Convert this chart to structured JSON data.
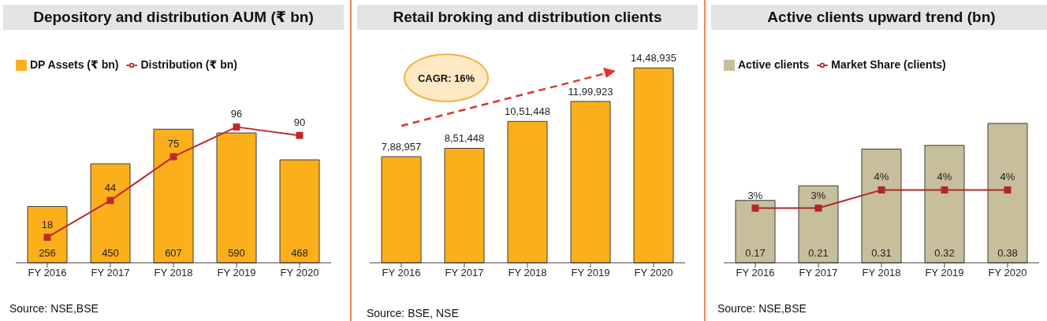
{
  "chart_data": [
    {
      "type": "bar",
      "title": "Depository and distribution AUM (₹ bn)",
      "categories": [
        "FY 2016",
        "FY 2017",
        "FY 2018",
        "FY 2019",
        "FY 2020"
      ],
      "series": [
        {
          "name": "DP Assets (₹ bn)",
          "color": "#fbb01b",
          "values": [
            256,
            450,
            607,
            590,
            468
          ]
        },
        {
          "name": "Distribution (₹ bn)",
          "type": "line",
          "axis": "y2",
          "color": "#c0282d",
          "values": [
            18,
            44,
            75,
            96,
            90
          ]
        }
      ],
      "data_labels": true,
      "marker": "square",
      "legend": "top left",
      "annotations": [
        "Source: NSE,BSE"
      ]
    },
    {
      "type": "bar",
      "title": "Retail broking and distribution clients",
      "categories": [
        "FY 2016",
        "FY 2017",
        "FY 2018",
        "FY 2019",
        "FY 2020"
      ],
      "values": [
        788957,
        851448,
        1051448,
        1199923,
        1448935
      ],
      "color": "#fbb01b",
      "value_labels": [
        "7,88,957",
        "8,51,448",
        "10,51,448",
        "11,99,923",
        "14,48,935"
      ],
      "annotations": [
        "CAGR: 16%",
        "Source: BSE, NSE"
      ]
    },
    {
      "type": "bar",
      "title": "Active clients upward trend (bn)",
      "categories": [
        "FY 2016",
        "FY 2017",
        "FY 2018",
        "FY 2019",
        "FY 2020"
      ],
      "series": [
        {
          "name": "Active clients",
          "color": "#c7bf9b",
          "values": [
            0.17,
            0.21,
            0.31,
            0.32,
            0.38
          ]
        },
        {
          "name": "Market Share (clients)",
          "type": "line",
          "axis": "y2",
          "color": "#b0262b",
          "values": [
            3,
            3,
            4,
            4,
            4
          ],
          "value_labels": [
            "3%",
            "3%",
            "4%",
            "4%",
            "4%"
          ]
        }
      ],
      "data_labels": true,
      "marker": "square",
      "legend": "top left",
      "annotations": [
        "Source: NSE,BSE"
      ]
    }
  ]
}
